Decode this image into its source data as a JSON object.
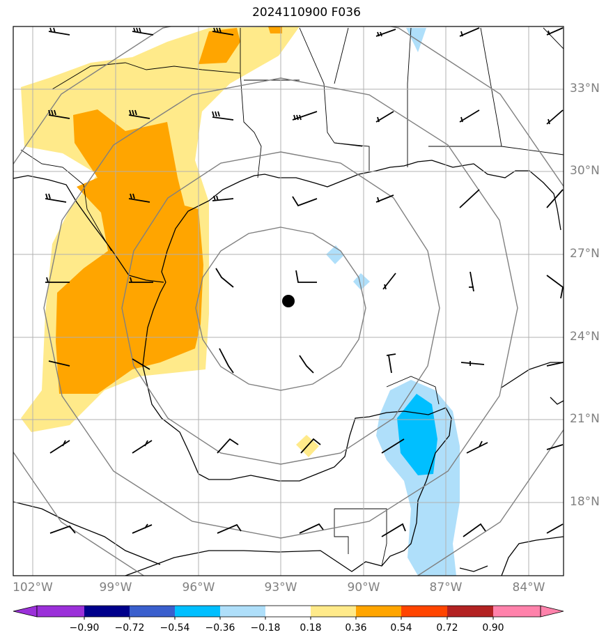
{
  "title": "2024110900 F036",
  "lat_labels": [
    "33°N",
    "30°N",
    "27°N",
    "24°N",
    "21°N",
    "18°N"
  ],
  "lon_labels": [
    "102°W",
    "99°W",
    "96°W",
    "93°W",
    "90°W",
    "87°W",
    "84°W"
  ],
  "colorbar": {
    "ticks": [
      "−0.90",
      "−0.72",
      "−0.54",
      "−0.36",
      "−0.18",
      "0.18",
      "0.36",
      "0.54",
      "0.72",
      "0.90"
    ],
    "colors": [
      "#9b30d9",
      "#00008b",
      "#3a5fcd",
      "#00bfff",
      "#afdffa",
      "#ffffff",
      "#ffea8a",
      "#ffa500",
      "#ff4500",
      "#b22222",
      "#ff82ab"
    ]
  },
  "center_marker": "storm-center-dot"
}
